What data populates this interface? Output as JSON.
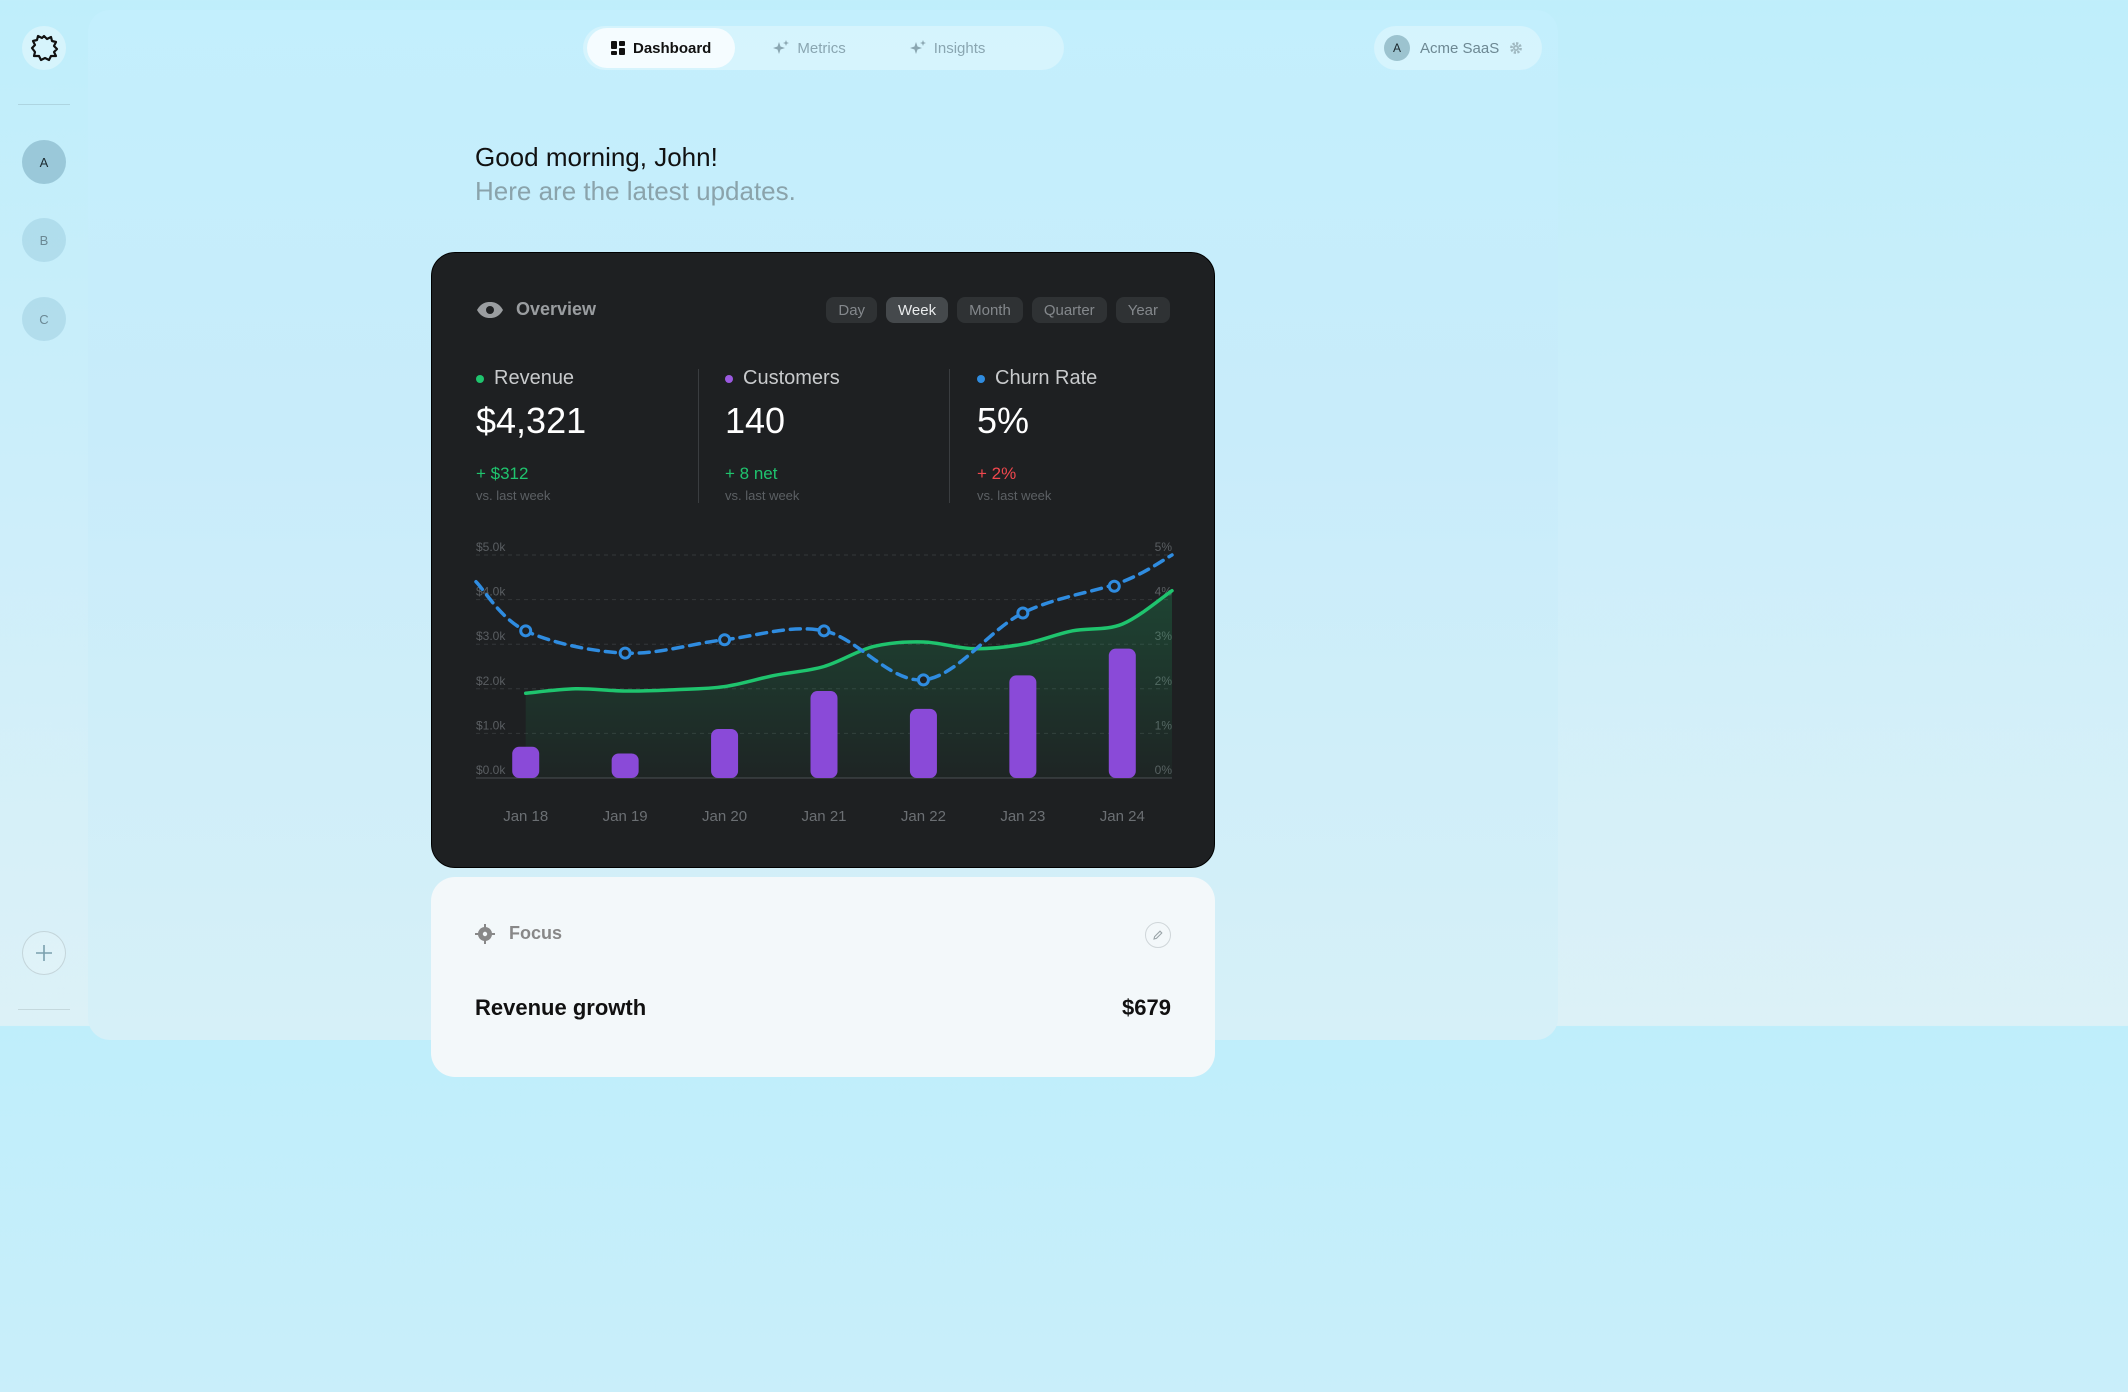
{
  "nav": {
    "tabs": [
      {
        "label": "Dashboard",
        "icon": "dashboard-grid-icon"
      },
      {
        "label": "Metrics",
        "icon": "sparkle-icon"
      },
      {
        "label": "Insights",
        "icon": "sparkle-icon"
      }
    ],
    "account": {
      "initial": "A",
      "name": "Acme SaaS",
      "icon": "gear-icon"
    }
  },
  "sidebar": {
    "logo_icon": "logo-badge-icon",
    "workspaces": [
      "A",
      "B",
      "C"
    ],
    "add_icon": "plus-icon"
  },
  "greeting": {
    "title": "Good morning, John!",
    "subtitle": "Here are the latest updates."
  },
  "overview": {
    "title": "Overview",
    "icon": "eye-icon",
    "ranges": [
      "Day",
      "Week",
      "Month",
      "Quarter",
      "Year"
    ],
    "selected_range": "Week",
    "stats": [
      {
        "label": "Revenue",
        "value": "$4,321",
        "change": "+ $312",
        "compare": "vs. last week",
        "color": "#1fc46e",
        "change_color": "#1fc46e"
      },
      {
        "label": "Customers",
        "value": "140",
        "change": "+ 8 net",
        "compare": "vs. last week",
        "color": "#9b59e0",
        "change_color": "#1fc46e"
      },
      {
        "label": "Churn Rate",
        "value": "5%",
        "change": "+ 2%",
        "compare": "vs. last week",
        "color": "#2f8ce0",
        "change_color": "#f0474d"
      }
    ]
  },
  "chart_data": {
    "type": "line",
    "categories": [
      "Jan 18",
      "Jan 19",
      "Jan 20",
      "Jan 21",
      "Jan 22",
      "Jan 23",
      "Jan 24"
    ],
    "left_axis": {
      "ticks": [
        "$0.0k",
        "$1.0k",
        "$2.0k",
        "$3.0k",
        "$4.0k",
        "$5.0k"
      ],
      "ylim": [
        0,
        5000
      ]
    },
    "right_axis": {
      "ticks": [
        "0%",
        "1%",
        "2%",
        "3%",
        "4%",
        "5%"
      ],
      "ylim": [
        0,
        5
      ]
    },
    "grid": true,
    "series": [
      {
        "type": "area",
        "axis": "left",
        "color": "#1fc46e",
        "x": [
          0,
          0.5,
          1,
          1.5,
          2,
          2.5,
          3,
          3.5,
          4,
          4.5,
          5,
          5.5,
          6,
          6.5
        ],
        "values": [
          1900,
          2000,
          1950,
          1980,
          2050,
          2300,
          2500,
          2950,
          3050,
          2900,
          3000,
          3300,
          3450,
          4200
        ]
      },
      {
        "type": "bar",
        "axis": "left",
        "color": "#8a4ad8",
        "values": [
          700,
          550,
          1100,
          1950,
          1550,
          2300,
          2900
        ]
      },
      {
        "type": "line",
        "axis": "right",
        "dashed": true,
        "color": "#2f8ce0",
        "x": [
          -0.5,
          0,
          1,
          2,
          3,
          4,
          5,
          6,
          6.5
        ],
        "values": [
          4.4,
          3.3,
          2.8,
          3.1,
          3.3,
          2.2,
          3.7,
          4.4,
          5.0
        ],
        "markers": [
          0,
          1,
          2,
          3,
          4,
          5,
          6
        ]
      }
    ]
  },
  "focus": {
    "title": "Focus",
    "icon": "target-icon",
    "edit_icon": "pencil-icon",
    "metric_label": "Revenue growth",
    "metric_value": "$679"
  }
}
